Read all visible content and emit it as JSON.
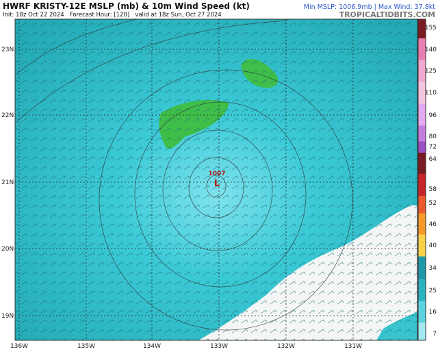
{
  "header": {
    "title": "HWRF KRISTY-12E MSLP (mb) & 10m Wind Speed (kt)",
    "subtitle": "Init: 18z Oct 22 2024   Forecast Hour: [120]   valid at 18z Sun, Oct 27 2024",
    "stats": "Min MSLP: 1006.9mb | Max Wind: 37.8kt",
    "source": "TROPICALTIDBITS.COM"
  },
  "map": {
    "lat_labels": [
      "23N",
      "22N",
      "21N",
      "20N",
      "19N"
    ],
    "lon_labels": [
      "136W",
      "135W",
      "134W",
      "133W",
      "132W",
      "131W"
    ],
    "low": {
      "pressure": "1007",
      "symbol": "L"
    }
  },
  "colorbar": {
    "labels": [
      "155",
      "140",
      "125",
      "110",
      "96",
      "80",
      "72",
      "64",
      "58",
      "52",
      "46",
      "40",
      "34",
      "25",
      "16",
      "7"
    ]
  }
}
